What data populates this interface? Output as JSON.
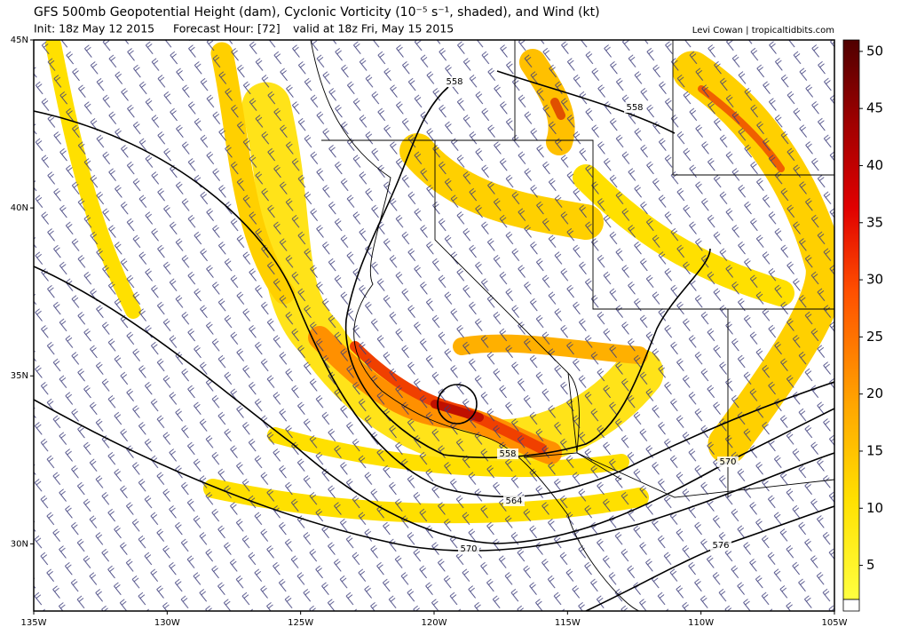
{
  "header": {
    "title": "GFS 500mb Geopotential Height (dam), Cyclonic Vorticity (10⁻⁵ s⁻¹, shaded), and Wind (kt)",
    "init": "Init: 18z May 12 2015",
    "forecast_hour": "Forecast Hour: [72]",
    "valid": "valid at 18z Fri, May 15 2015",
    "credit": "Levi Cowan | tropicaltidbits.com"
  },
  "map": {
    "lonlim": [
      -135,
      -105
    ],
    "latlim": [
      28,
      45
    ],
    "lon_ticks": [
      {
        "value": -135,
        "label": "135W"
      },
      {
        "value": -130,
        "label": "130W"
      },
      {
        "value": -125,
        "label": "125W"
      },
      {
        "value": -120,
        "label": "120W"
      },
      {
        "value": -115,
        "label": "115W"
      },
      {
        "value": -110,
        "label": "110W"
      },
      {
        "value": -105,
        "label": "105W"
      }
    ],
    "lat_ticks": [
      {
        "value": 45,
        "label": "45N"
      },
      {
        "value": 40,
        "label": "40N"
      },
      {
        "value": 35,
        "label": "35N"
      },
      {
        "value": 30,
        "label": "30N"
      }
    ],
    "contour_labels": [
      558,
      558,
      558,
      564,
      570,
      570,
      576
    ]
  },
  "colorbar": {
    "lim": [
      1,
      51
    ],
    "ticks": [
      5,
      10,
      15,
      20,
      25,
      30,
      35,
      40,
      45,
      50
    ]
  }
}
